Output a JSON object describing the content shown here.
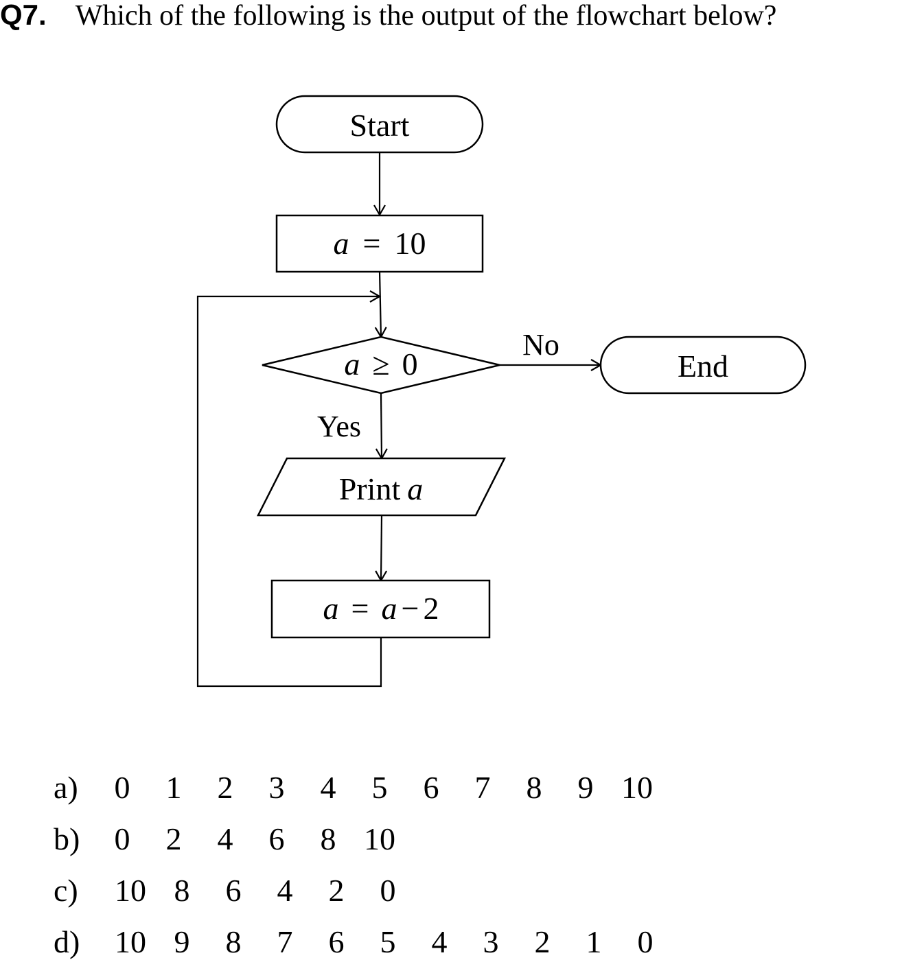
{
  "question": {
    "number": "Q7.",
    "text": "Which of the following is the output of the flowchart below?"
  },
  "flowchart": {
    "start_label": "Start",
    "init": {
      "var": "a",
      "op": "=",
      "value": "10"
    },
    "decision": {
      "var": "a",
      "op": "≥",
      "value": "0"
    },
    "no_label": "No",
    "yes_label": "Yes",
    "end_label": "End",
    "print": {
      "text": "Print",
      "var": "a"
    },
    "update": {
      "var": "a",
      "op": "=",
      "expr_var": "a",
      "minus": "−",
      "expr_num": "2"
    }
  },
  "options": [
    {
      "label": "a)",
      "values": [
        "0",
        "1",
        "2",
        "3",
        "4",
        "5",
        "6",
        "7",
        "8",
        "9",
        "10"
      ]
    },
    {
      "label": "b)",
      "values": [
        "0",
        "2",
        "4",
        "6",
        "8",
        "10"
      ]
    },
    {
      "label": "c)",
      "values": [
        "10",
        "8",
        "6",
        "4",
        "2",
        "0"
      ]
    },
    {
      "label": "d)",
      "values": [
        "10",
        "9",
        "8",
        "7",
        "6",
        "5",
        "4",
        "3",
        "2",
        "1",
        "0"
      ]
    }
  ]
}
